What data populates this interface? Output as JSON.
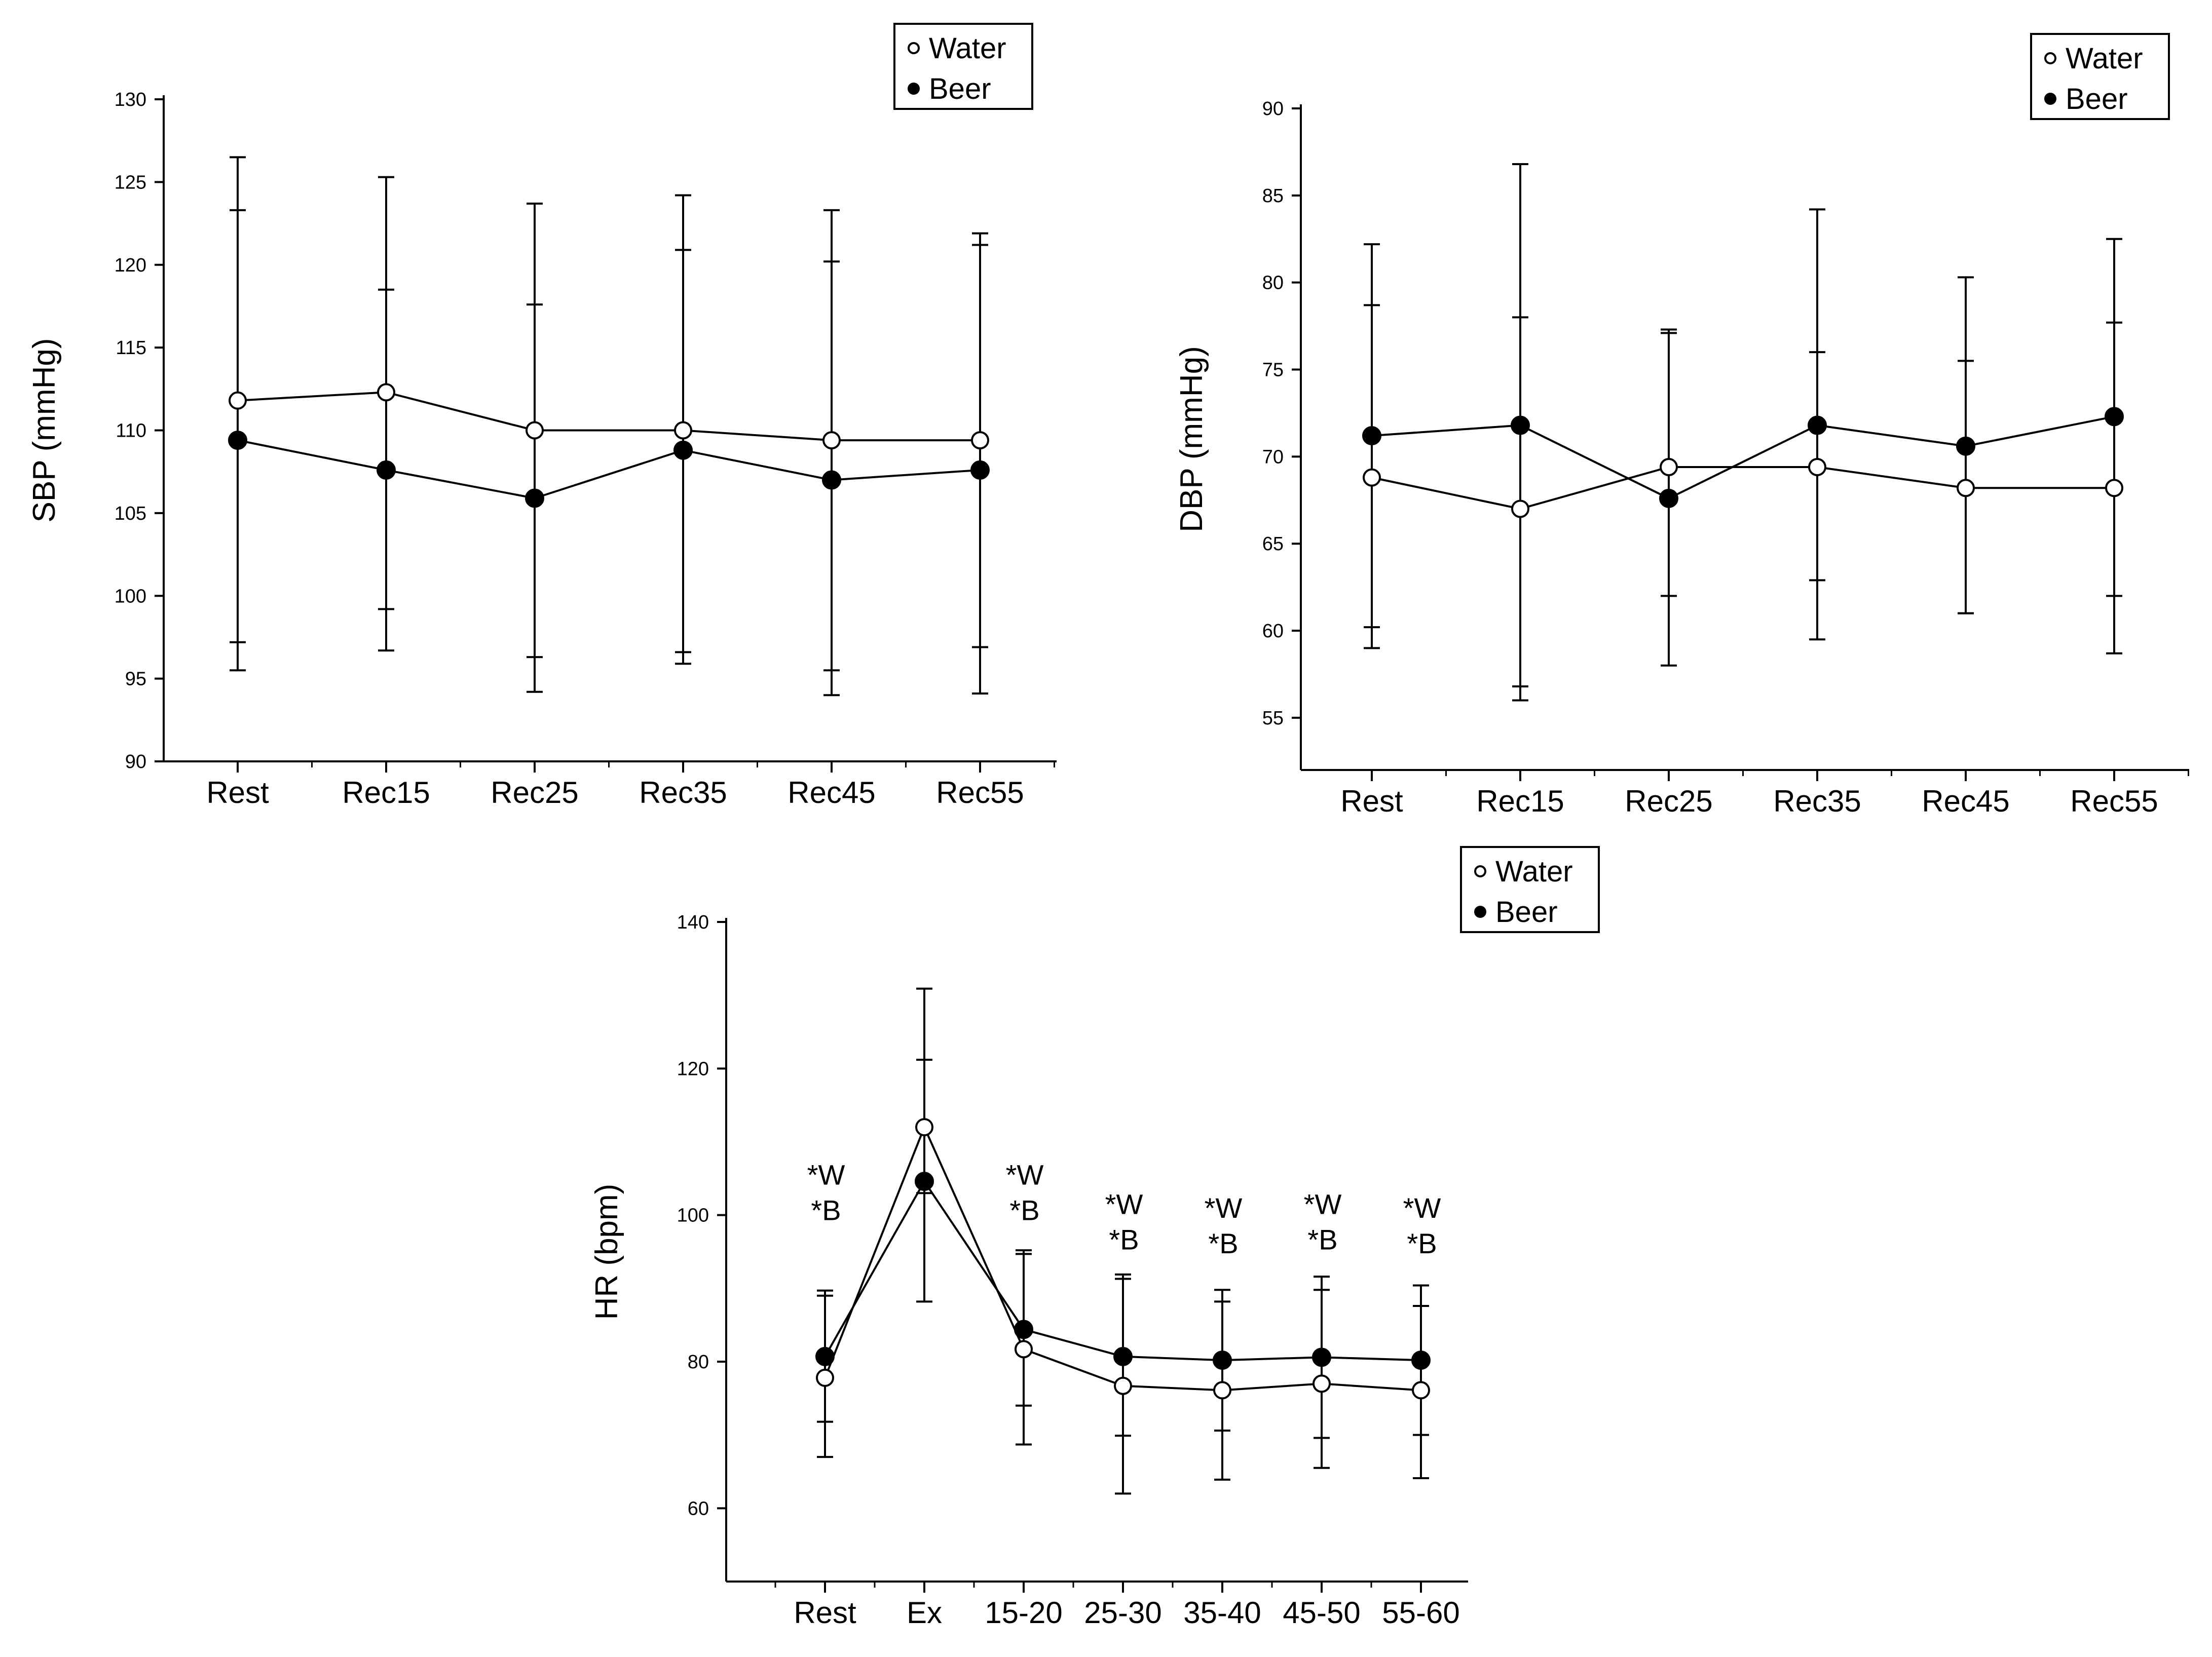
{
  "chart_data": [
    {
      "id": "sbp",
      "type": "line",
      "ylabel": "SBP (mmHg)",
      "xlabel": "",
      "ylim": [
        90,
        130
      ],
      "yticks": [
        90,
        95,
        100,
        105,
        110,
        115,
        120,
        125,
        130
      ],
      "categories": [
        "Rest",
        "Rec15",
        "Rec25",
        "Rec35",
        "Rec45",
        "Rec55"
      ],
      "legend": {
        "position": "top-right",
        "entries": [
          "Water",
          "Beer"
        ]
      },
      "series": [
        {
          "name": "Water",
          "marker": "open-circle",
          "values": [
            111.8,
            112.3,
            110.0,
            110.0,
            109.4,
            109.4
          ],
          "err_upper": [
            123.3,
            118.5,
            117.6,
            120.9,
            120.2,
            121.2
          ],
          "err_lower": [
            97.2,
            99.2,
            96.3,
            96.6,
            95.5,
            96.9
          ]
        },
        {
          "name": "Beer",
          "marker": "filled-circle",
          "values": [
            109.4,
            107.6,
            105.9,
            108.8,
            107.0,
            107.6
          ],
          "err_upper": [
            126.5,
            125.3,
            123.7,
            124.2,
            123.3,
            121.9
          ],
          "err_lower": [
            95.5,
            96.7,
            94.2,
            95.9,
            94.0,
            94.1
          ]
        }
      ],
      "annotations": []
    },
    {
      "id": "dbp",
      "type": "line",
      "ylabel": "DBP (mmHg)",
      "xlabel": "",
      "ylim": [
        52,
        90
      ],
      "yticks": [
        55,
        60,
        65,
        70,
        75,
        80,
        85,
        90
      ],
      "categories": [
        "Rest",
        "Rec15",
        "Rec25",
        "Rec35",
        "Rec45",
        "Rec55"
      ],
      "legend": {
        "position": "top-right",
        "entries": [
          "Water",
          "Beer"
        ]
      },
      "series": [
        {
          "name": "Water",
          "marker": "open-circle",
          "values": [
            68.8,
            67.0,
            69.4,
            69.4,
            68.2,
            68.2
          ],
          "err_upper": [
            78.7,
            78.0,
            77.1,
            76.0,
            75.5,
            77.7
          ],
          "err_lower": [
            59.0,
            56.0,
            62.0,
            62.9,
            61.0,
            58.7
          ]
        },
        {
          "name": "Beer",
          "marker": "filled-circle",
          "values": [
            71.2,
            71.8,
            67.6,
            71.8,
            70.6,
            72.3
          ],
          "err_upper": [
            82.2,
            86.8,
            77.3,
            84.2,
            80.3,
            82.5
          ],
          "err_lower": [
            60.2,
            56.8,
            58.0,
            59.5,
            61.0,
            62.0
          ]
        }
      ],
      "annotations": []
    },
    {
      "id": "hr",
      "type": "line",
      "ylabel": "HR (bpm)",
      "xlabel": "",
      "ylim": [
        50,
        140
      ],
      "yticks": [
        60,
        80,
        100,
        120,
        140
      ],
      "categories": [
        "Rest",
        "Ex",
        "15-20",
        "25-30",
        "35-40",
        "45-50",
        "55-60"
      ],
      "legend": {
        "position": "top-right",
        "entries": [
          "Water",
          "Beer"
        ]
      },
      "series": [
        {
          "name": "Water",
          "marker": "open-circle",
          "values": [
            77.8,
            112.0,
            81.7,
            76.7,
            76.1,
            77.0,
            76.1
          ],
          "err_upper": [
            89.0,
            121.2,
            94.7,
            91.3,
            88.2,
            89.8,
            87.6
          ],
          "err_lower": [
            67.0,
            103.0,
            68.7,
            62.0,
            63.9,
            65.5,
            64.1
          ]
        },
        {
          "name": "Beer",
          "marker": "filled-circle",
          "values": [
            80.7,
            104.6,
            84.4,
            80.7,
            80.2,
            80.6,
            80.2
          ],
          "err_upper": [
            89.7,
            130.9,
            95.2,
            91.9,
            89.8,
            91.6,
            90.4
          ],
          "err_lower": [
            71.8,
            88.2,
            74.0,
            69.9,
            70.6,
            69.6,
            70.0
          ]
        }
      ],
      "annotations": [
        {
          "category": "Rest",
          "lines": [
            "*W",
            "*B"
          ],
          "level": 100
        },
        {
          "category": "15-20",
          "lines": [
            "*W",
            "*B"
          ],
          "level": 100
        },
        {
          "category": "25-30",
          "lines": [
            "*W",
            "*B"
          ],
          "level": 96
        },
        {
          "category": "35-40",
          "lines": [
            "*W",
            "*B"
          ],
          "level": 95.5
        },
        {
          "category": "45-50",
          "lines": [
            "*W",
            "*B"
          ],
          "level": 96
        },
        {
          "category": "55-60",
          "lines": [
            "*W",
            "*B"
          ],
          "level": 95.5
        }
      ]
    }
  ]
}
